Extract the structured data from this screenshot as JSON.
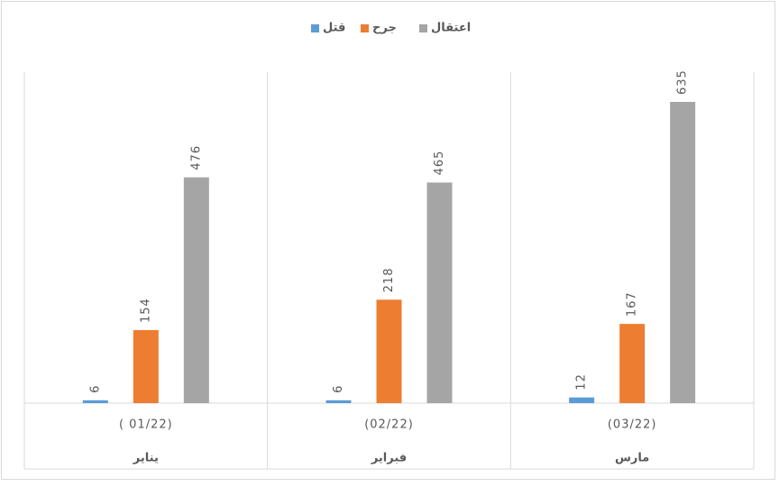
{
  "chart_data": {
    "type": "bar",
    "categories": [
      [
        "( 01/22)",
        "يناير"
      ],
      [
        "(02/22)",
        "فبراير"
      ],
      [
        "(03/22)",
        "مارس"
      ]
    ],
    "series": [
      {
        "name": "قتل",
        "color": "#5b9bd5",
        "values": [
          6,
          6,
          12
        ]
      },
      {
        "name": "جرح",
        "color": "#ed7d31",
        "values": [
          154,
          218,
          167
        ]
      },
      {
        "name": "اعتقال",
        "color": "#a5a5a5",
        "values": [
          476,
          465,
          635
        ]
      }
    ]
  }
}
